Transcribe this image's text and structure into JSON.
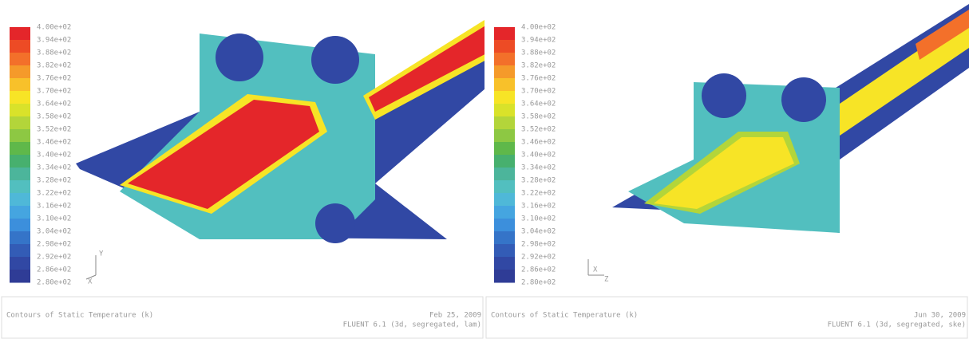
{
  "colormap": [
    "#e4262a",
    "#ed4b25",
    "#f3702a",
    "#f59a2a",
    "#f8c12a",
    "#f7e426",
    "#d9e22a",
    "#b3d53a",
    "#8dc843",
    "#5fb84a",
    "#47b06e",
    "#4cb59b",
    "#52bfbf",
    "#4fb8d8",
    "#45a5e0",
    "#3c8fdc",
    "#3574c8",
    "#335cb6",
    "#3148a4",
    "#2f3c96"
  ],
  "panels": [
    {
      "colorbar": {
        "labels": [
          "4.00e+02",
          "3.94e+02",
          "3.88e+02",
          "3.82e+02",
          "3.76e+02",
          "3.70e+02",
          "3.64e+02",
          "3.58e+02",
          "3.52e+02",
          "3.46e+02",
          "3.40e+02",
          "3.34e+02",
          "3.28e+02",
          "3.22e+02",
          "3.16e+02",
          "3.10e+02",
          "3.04e+02",
          "2.98e+02",
          "2.92e+02",
          "2.86e+02",
          "2.80e+02"
        ]
      },
      "triad": [
        "Y",
        "X"
      ],
      "footer": {
        "title": "Contours of Static Temperature (k)",
        "date": "Feb 25, 2009",
        "version": "FLUENT 6.1 (3d, segregated, lam)"
      }
    },
    {
      "colorbar": {
        "labels": [
          "4.00e+02",
          "3.94e+02",
          "3.88e+02",
          "3.82e+02",
          "3.76e+02",
          "3.70e+02",
          "3.64e+02",
          "3.58e+02",
          "3.52e+02",
          "3.46e+02",
          "3.40e+02",
          "3.34e+02",
          "3.28e+02",
          "3.22e+02",
          "3.16e+02",
          "3.10e+02",
          "3.04e+02",
          "2.98e+02",
          "2.92e+02",
          "2.86e+02",
          "2.80e+02"
        ]
      },
      "triad": [
        "X",
        "Z"
      ],
      "footer": {
        "title": "Contours of Static Temperature (k)",
        "date": "Jun 30, 2009",
        "version": "FLUENT 6.1 (3d, segregated, ske)"
      }
    }
  ]
}
